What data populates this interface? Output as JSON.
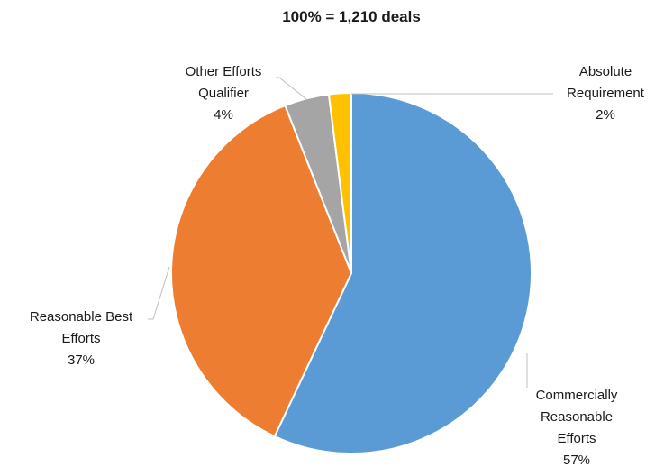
{
  "chart_data": {
    "type": "pie",
    "title": "100% = 1,210 deals",
    "slices": [
      {
        "label_lines": [
          "Commercially",
          "Reasonable",
          "Efforts"
        ],
        "pct_label": "57%",
        "value": 57,
        "color": "#5B9BD5"
      },
      {
        "label_lines": [
          "Reasonable Best",
          "Efforts"
        ],
        "pct_label": "37%",
        "value": 37,
        "color": "#ED7D31"
      },
      {
        "label_lines": [
          "Other Efforts",
          "Qualifier"
        ],
        "pct_label": "4%",
        "value": 4,
        "color": "#A5A5A5"
      },
      {
        "label_lines": [
          "Absolute",
          "Requirement"
        ],
        "pct_label": "2%",
        "value": 2,
        "color": "#FFC000"
      }
    ],
    "direction": "clockwise from top",
    "legend": "none"
  }
}
